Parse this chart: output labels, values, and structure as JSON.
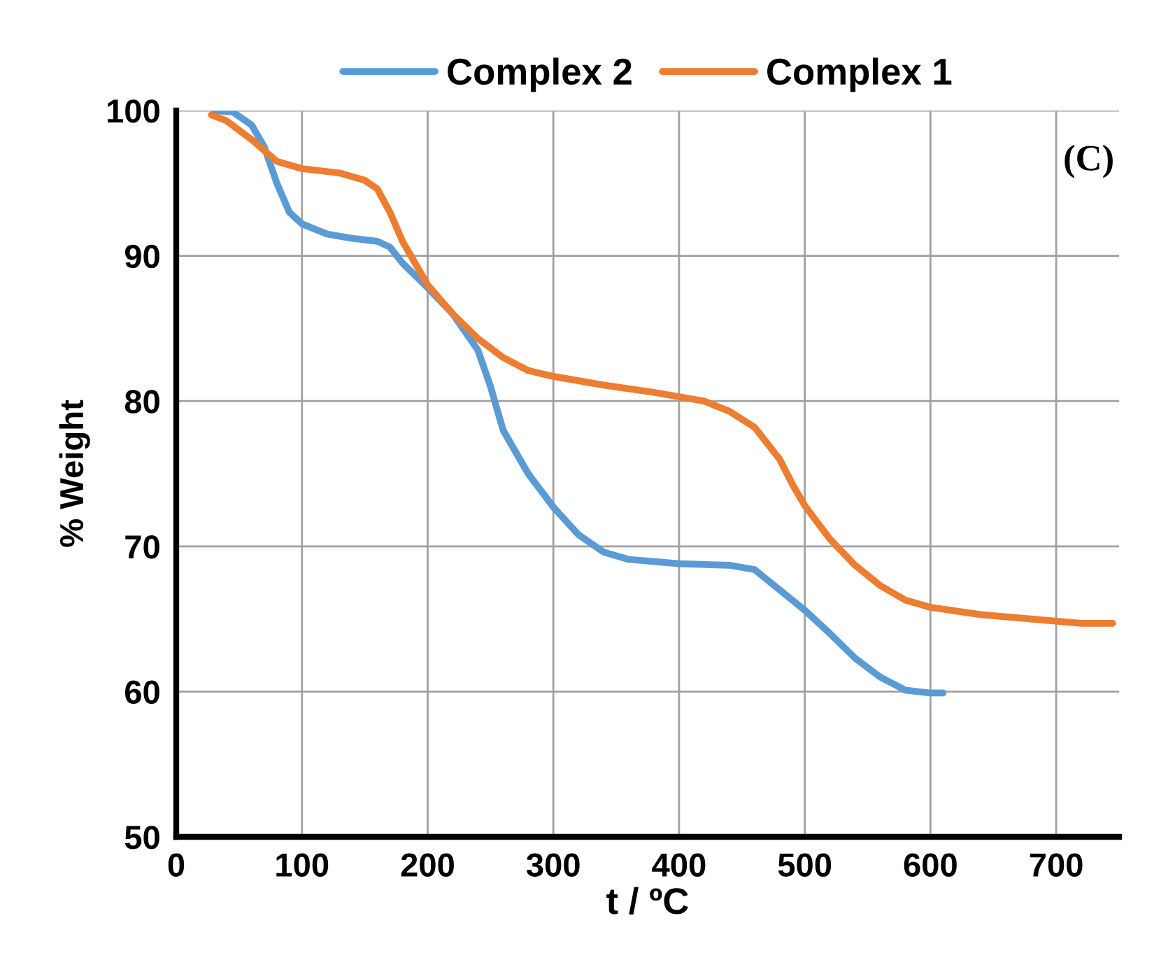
{
  "chart_data": {
    "type": "line",
    "xlabel": "t / ºC",
    "ylabel": "% Weight",
    "annotations": [
      "(C)"
    ],
    "legend": "top",
    "grid": true,
    "marker": "none",
    "line_style": "solid",
    "xlim": [
      0,
      750
    ],
    "xticks": [
      0,
      100,
      200,
      300,
      400,
      500,
      600,
      700
    ],
    "ylim": [
      50,
      100
    ],
    "yticks": [
      50,
      60,
      70,
      80,
      90,
      100
    ],
    "series": [
      {
        "name": "Complex 2",
        "color": "#5b9bd5",
        "x": [
          30,
          45,
          60,
          70,
          80,
          90,
          100,
          120,
          140,
          160,
          170,
          180,
          200,
          220,
          240,
          250,
          260,
          280,
          300,
          320,
          340,
          360,
          400,
          440,
          460,
          480,
          500,
          520,
          540,
          560,
          580,
          600,
          610
        ],
        "values": [
          100,
          99.9,
          99,
          97.5,
          95,
          93,
          92.2,
          91.5,
          91.2,
          91,
          90.6,
          89.5,
          87.8,
          86,
          83.5,
          81,
          78,
          75,
          72.7,
          70.8,
          69.6,
          69.1,
          68.8,
          68.7,
          68.4,
          67,
          65.6,
          64,
          62.3,
          61,
          60.1,
          59.9,
          59.9
        ]
      },
      {
        "name": "Complex 1",
        "color": "#ed7d31",
        "x": [
          28,
          40,
          60,
          80,
          100,
          130,
          150,
          160,
          170,
          180,
          200,
          220,
          240,
          260,
          280,
          300,
          340,
          380,
          400,
          420,
          440,
          460,
          480,
          490,
          500,
          520,
          540,
          560,
          580,
          600,
          640,
          680,
          720,
          745
        ],
        "values": [
          99.7,
          99.3,
          98,
          96.5,
          96,
          95.7,
          95.2,
          94.6,
          93,
          91,
          88,
          86,
          84.3,
          83,
          82.1,
          81.7,
          81.1,
          80.6,
          80.3,
          80,
          79.3,
          78.2,
          76,
          74.3,
          72.8,
          70.5,
          68.7,
          67.3,
          66.3,
          65.8,
          65.3,
          65,
          64.7,
          64.7
        ]
      }
    ]
  }
}
